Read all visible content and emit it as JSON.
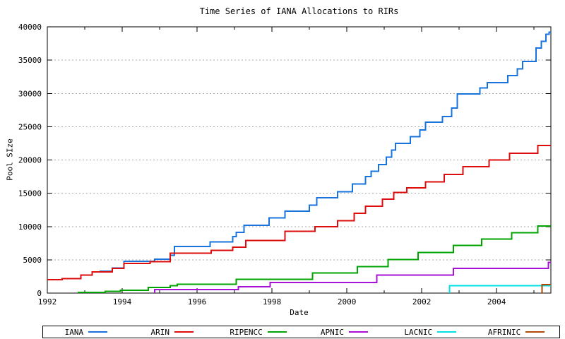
{
  "chart_data": {
    "type": "line",
    "title": "Time Series of IANA Allocations to RIRs",
    "xlabel": "Date",
    "ylabel": "Pool SIze",
    "xlim": [
      1992,
      2005.45
    ],
    "ylim": [
      0,
      40000
    ],
    "x_ticks": [
      1992,
      1994,
      1996,
      1998,
      2000,
      2002,
      2004
    ],
    "x_tick_labels": [
      "1992",
      "1994",
      "1996",
      "1998",
      "2000",
      "2002",
      "2004"
    ],
    "x_minor_ticks": [
      1993,
      1995,
      1997,
      1999,
      2001,
      2003,
      2005
    ],
    "y_ticks": [
      0,
      5000,
      10000,
      15000,
      20000,
      25000,
      30000,
      35000,
      40000
    ],
    "y_tick_labels": [
      "0",
      "5000",
      "10000",
      "15000",
      "20000",
      "25000",
      "30000",
      "35000",
      "40000"
    ],
    "grid": "horizontal-dotted",
    "grid_color": "#a8a8a8",
    "axis_color": "#000000",
    "legend_position": "bottom",
    "step_mode": "post",
    "series": [
      {
        "name": "IANA",
        "color": "#1874dc",
        "riser": false,
        "points": [
          [
            1993.4,
            3300
          ],
          [
            1993.74,
            3750
          ],
          [
            1994.05,
            4770
          ],
          [
            1994.87,
            5100
          ],
          [
            1995.28,
            5700
          ],
          [
            1995.4,
            7000
          ],
          [
            1996.35,
            7700
          ],
          [
            1996.95,
            8500
          ],
          [
            1997.05,
            9100
          ],
          [
            1997.25,
            10200
          ],
          [
            1997.92,
            11300
          ],
          [
            1998.35,
            12300
          ],
          [
            1999.0,
            13200
          ],
          [
            1999.2,
            14300
          ],
          [
            1999.75,
            15200
          ],
          [
            2000.15,
            16400
          ],
          [
            2000.5,
            17500
          ],
          [
            2000.65,
            18300
          ],
          [
            2000.85,
            19300
          ],
          [
            2001.05,
            20400
          ],
          [
            2001.2,
            21500
          ],
          [
            2001.3,
            22500
          ],
          [
            2001.7,
            23500
          ],
          [
            2001.95,
            24500
          ],
          [
            2002.1,
            25700
          ],
          [
            2002.55,
            26500
          ],
          [
            2002.8,
            27800
          ],
          [
            2002.95,
            29900
          ],
          [
            2003.55,
            30800
          ],
          [
            2003.75,
            31600
          ],
          [
            2004.3,
            32700
          ],
          [
            2004.55,
            33700
          ],
          [
            2004.7,
            34800
          ],
          [
            2005.05,
            36800
          ],
          [
            2005.2,
            37800
          ],
          [
            2005.32,
            38900
          ],
          [
            2005.4,
            39200
          ]
        ]
      },
      {
        "name": "ARIN",
        "color": "#dd0d0d",
        "riser": false,
        "points": [
          [
            1992.0,
            2000
          ],
          [
            1992.4,
            2200
          ],
          [
            1992.9,
            2700
          ],
          [
            1993.2,
            3180
          ],
          [
            1993.74,
            3700
          ],
          [
            1994.05,
            4460
          ],
          [
            1994.74,
            4700
          ],
          [
            1995.28,
            6000
          ],
          [
            1996.38,
            6400
          ],
          [
            1996.95,
            6900
          ],
          [
            1997.3,
            7900
          ],
          [
            1998.35,
            9300
          ],
          [
            1999.15,
            10000
          ],
          [
            1999.75,
            10900
          ],
          [
            2000.2,
            12000
          ],
          [
            2000.5,
            13050
          ],
          [
            2000.95,
            14100
          ],
          [
            2001.25,
            15100
          ],
          [
            2001.6,
            15800
          ],
          [
            2002.1,
            16700
          ],
          [
            2002.6,
            17800
          ],
          [
            2003.1,
            19000
          ],
          [
            2003.8,
            20000
          ],
          [
            2004.35,
            21000
          ],
          [
            2005.1,
            22200
          ]
        ]
      },
      {
        "name": "RIPENCC",
        "color": "#00a400",
        "riser": true,
        "points": [
          [
            1992.83,
            100
          ],
          [
            1993.55,
            250
          ],
          [
            1993.95,
            450
          ],
          [
            1994.7,
            850
          ],
          [
            1995.28,
            1100
          ],
          [
            1995.47,
            1350
          ],
          [
            1997.05,
            2050
          ],
          [
            1999.08,
            3000
          ],
          [
            2000.28,
            3960
          ],
          [
            2001.1,
            5060
          ],
          [
            2001.9,
            6100
          ],
          [
            2002.85,
            7180
          ],
          [
            2003.6,
            8140
          ],
          [
            2004.4,
            9090
          ],
          [
            2005.1,
            10080
          ]
        ]
      },
      {
        "name": "APNIC",
        "color": "#a810d8",
        "riser": true,
        "points": [
          [
            1994.87,
            550
          ],
          [
            1997.1,
            950
          ],
          [
            1997.95,
            1590
          ],
          [
            2000.8,
            2730
          ],
          [
            2002.85,
            3700
          ],
          [
            2005.38,
            4600
          ]
        ]
      },
      {
        "name": "LACNIC",
        "color": "#00e0e0",
        "riser": true,
        "points": [
          [
            2002.74,
            1100
          ]
        ]
      },
      {
        "name": "AFRINIC",
        "color": "#b04a00",
        "riser": true,
        "points": [
          [
            2005.21,
            1250
          ]
        ]
      }
    ]
  }
}
